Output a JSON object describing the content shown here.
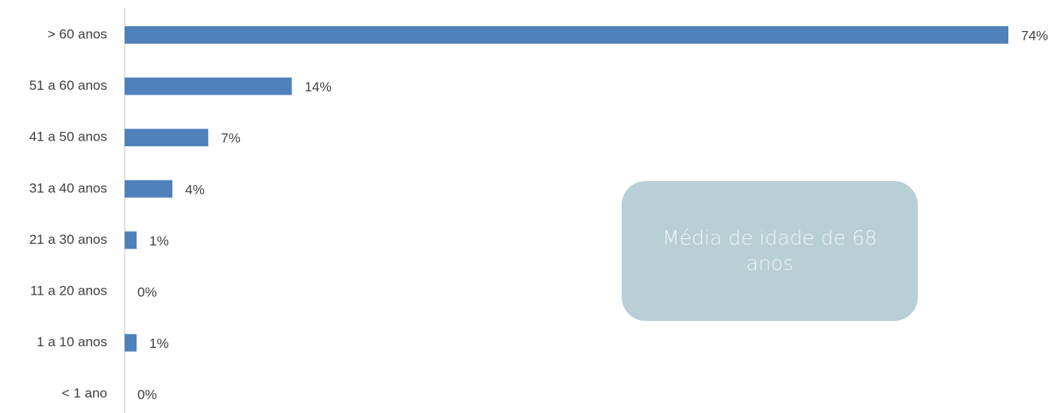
{
  "chart_data": {
    "type": "barh",
    "categories": [
      "> 60 anos",
      "51 a 60 anos",
      "41 a 50 anos",
      "31 a 40 anos",
      "21 a 30 anos",
      "11 a 20 anos",
      "1 a 10 anos",
      "< 1 ano"
    ],
    "values": [
      74,
      14,
      7,
      4,
      1,
      0,
      1,
      0
    ],
    "value_labels": [
      "74%",
      "14%",
      "7%",
      "4%",
      "1%",
      "0%",
      "1%",
      "0%"
    ],
    "color": "#4f81bd",
    "annotation": "Média de idade de 68 anos"
  }
}
